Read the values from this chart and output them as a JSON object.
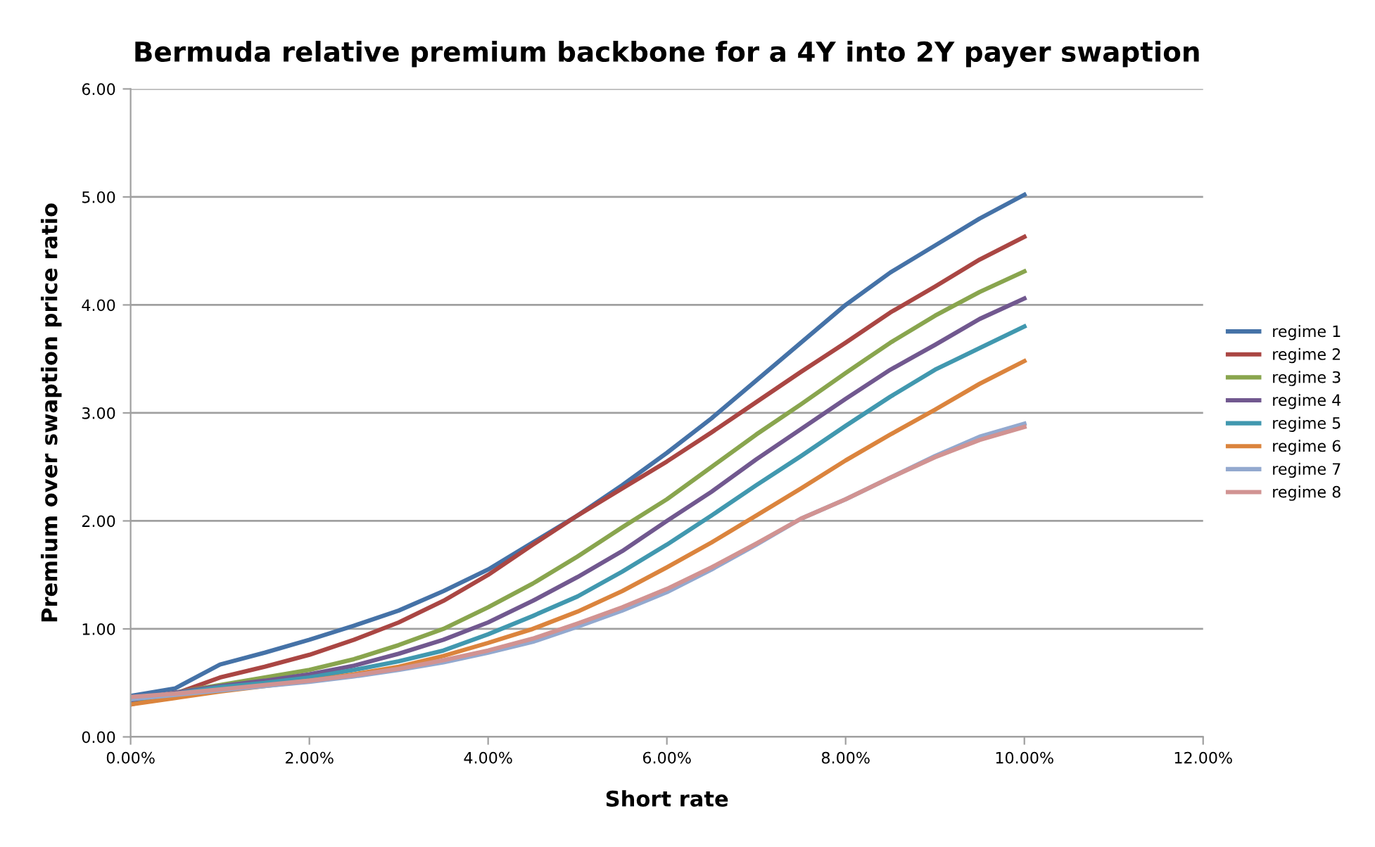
{
  "chart_data": {
    "type": "line",
    "title": "Bermuda relative premium backbone for a 4Y into 2Y payer swaption",
    "xlabel": "Short rate",
    "ylabel": "Premium over swaption price ratio",
    "x": [
      0,
      0.5,
      1,
      1.5,
      2,
      2.5,
      3,
      3.5,
      4,
      4.5,
      5,
      5.5,
      6,
      6.5,
      7,
      7.5,
      8,
      8.5,
      9,
      9.5,
      10
    ],
    "series": [
      {
        "name": "regime 1",
        "color": "#4572a7",
        "values": [
          0.38,
          0.45,
          0.67,
          0.78,
          0.9,
          1.03,
          1.17,
          1.35,
          1.55,
          1.8,
          2.05,
          2.33,
          2.63,
          2.95,
          3.3,
          3.65,
          4.0,
          4.3,
          4.55,
          4.8,
          5.02
        ]
      },
      {
        "name": "regime 2",
        "color": "#aa4643",
        "values": [
          0.3,
          0.4,
          0.55,
          0.65,
          0.76,
          0.9,
          1.06,
          1.26,
          1.5,
          1.78,
          2.05,
          2.3,
          2.55,
          2.82,
          3.1,
          3.38,
          3.65,
          3.93,
          4.17,
          4.42,
          4.63
        ]
      },
      {
        "name": "regime 3",
        "color": "#89a54e",
        "values": [
          0.33,
          0.41,
          0.48,
          0.55,
          0.62,
          0.72,
          0.85,
          1.0,
          1.2,
          1.42,
          1.67,
          1.94,
          2.2,
          2.5,
          2.8,
          3.08,
          3.37,
          3.65,
          3.9,
          4.12,
          4.31
        ]
      },
      {
        "name": "regime 4",
        "color": "#71588f",
        "values": [
          0.34,
          0.41,
          0.47,
          0.52,
          0.58,
          0.66,
          0.77,
          0.9,
          1.06,
          1.26,
          1.48,
          1.72,
          2.0,
          2.27,
          2.57,
          2.85,
          3.13,
          3.4,
          3.63,
          3.87,
          4.06
        ]
      },
      {
        "name": "regime 5",
        "color": "#4198af",
        "values": [
          0.35,
          0.4,
          0.46,
          0.5,
          0.55,
          0.62,
          0.7,
          0.8,
          0.95,
          1.12,
          1.3,
          1.53,
          1.78,
          2.05,
          2.33,
          2.6,
          2.88,
          3.15,
          3.4,
          3.6,
          3.8
        ]
      },
      {
        "name": "regime 6",
        "color": "#db843d",
        "values": [
          0.3,
          0.36,
          0.42,
          0.47,
          0.52,
          0.58,
          0.65,
          0.75,
          0.87,
          1.0,
          1.16,
          1.35,
          1.57,
          1.8,
          2.05,
          2.3,
          2.56,
          2.8,
          3.03,
          3.27,
          3.48
        ]
      },
      {
        "name": "regime 7",
        "color": "#93a9cf",
        "values": [
          0.35,
          0.39,
          0.43,
          0.47,
          0.51,
          0.56,
          0.62,
          0.69,
          0.78,
          0.88,
          1.02,
          1.17,
          1.34,
          1.55,
          1.78,
          2.02,
          2.2,
          2.4,
          2.6,
          2.78,
          2.9
        ]
      },
      {
        "name": "regime 8",
        "color": "#d19392",
        "values": [
          0.37,
          0.4,
          0.44,
          0.48,
          0.52,
          0.57,
          0.63,
          0.71,
          0.8,
          0.91,
          1.05,
          1.2,
          1.37,
          1.57,
          1.79,
          2.02,
          2.2,
          2.4,
          2.59,
          2.75,
          2.87
        ]
      }
    ],
    "xlim": [
      0,
      12
    ],
    "xticks": [
      {
        "value": 0,
        "label": "0.00%"
      },
      {
        "value": 2,
        "label": "2.00%"
      },
      {
        "value": 4,
        "label": "4.00%"
      },
      {
        "value": 6,
        "label": "6.00%"
      },
      {
        "value": 8,
        "label": "8.00%"
      },
      {
        "value": 10,
        "label": "10.00%"
      },
      {
        "value": 12,
        "label": "12.00%"
      }
    ],
    "ylim": [
      0,
      6
    ],
    "yticks": [
      {
        "value": 0,
        "label": "0.00"
      },
      {
        "value": 1,
        "label": "1.00"
      },
      {
        "value": 2,
        "label": "2.00"
      },
      {
        "value": 3,
        "label": "3.00"
      },
      {
        "value": 4,
        "label": "4.00"
      },
      {
        "value": 5,
        "label": "5.00"
      },
      {
        "value": 6,
        "label": "6.00"
      }
    ],
    "grid": "y",
    "legend": "right",
    "marker": "none",
    "line_style": "solid"
  }
}
